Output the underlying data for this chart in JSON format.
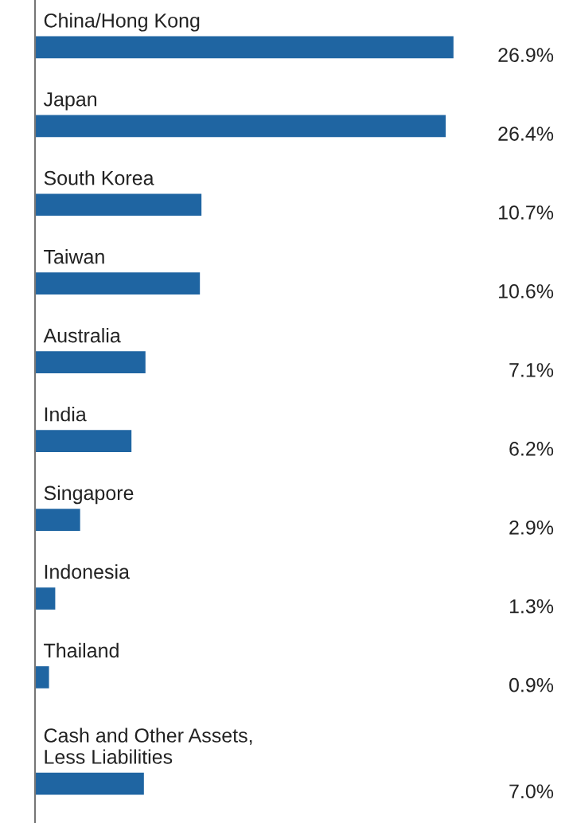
{
  "chart_data": {
    "type": "bar",
    "orientation": "horizontal",
    "categories": [
      "China/Hong Kong",
      "Japan",
      "South Korea",
      "Taiwan",
      "Australia",
      "India",
      "Singapore",
      "Indonesia",
      "Thailand",
      "Cash and Other Assets,\nLess Liabilities"
    ],
    "values": [
      26.9,
      26.4,
      10.7,
      10.6,
      7.1,
      6.2,
      2.9,
      1.3,
      0.9,
      7.0
    ],
    "value_labels": [
      "26.9%",
      "26.4%",
      "10.7%",
      "10.6%",
      "7.1%",
      "6.2%",
      "2.9%",
      "1.3%",
      "0.9%",
      "7.0%"
    ],
    "color": "#1f65a2"
  }
}
